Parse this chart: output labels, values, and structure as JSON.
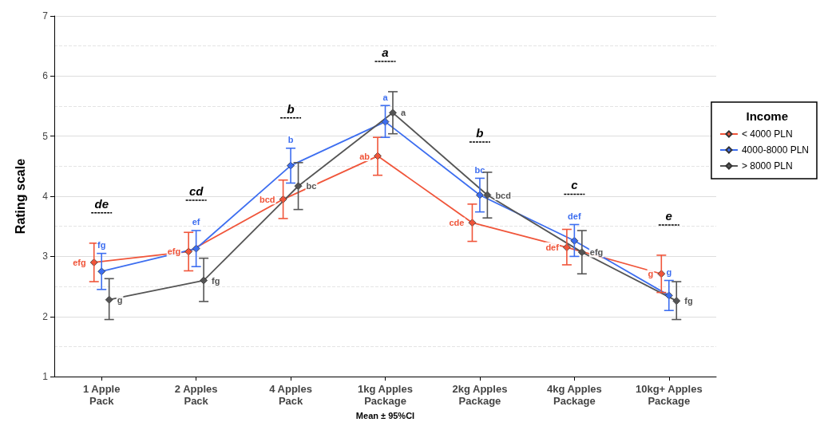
{
  "chart_data": {
    "type": "line",
    "xlabel": "Mean ± 95%CI",
    "ylabel": "Rating scale",
    "legend_title": "Income",
    "categories": [
      "1 Apple\nPack",
      "2 Apples\nPack",
      "4 Apples\nPack",
      "1kg Apples\nPackage",
      "2kg Apples\nPackage",
      "4kg Apples\nPackage",
      "10kg+ Apples\nPackage"
    ],
    "series": [
      {
        "name": "< 4000 PLN",
        "color": "#f0553a",
        "values": [
          2.9,
          3.08,
          3.95,
          4.67,
          3.56,
          3.15,
          2.71
        ],
        "errors": [
          [
            2.58,
            3.22
          ],
          [
            2.76,
            3.4
          ],
          [
            3.63,
            4.27
          ],
          [
            4.35,
            4.98
          ],
          [
            3.25,
            3.87
          ],
          [
            2.86,
            3.45
          ],
          [
            2.4,
            3.02
          ]
        ],
        "value_labels": [
          "efg",
          "efg",
          "bcd",
          "ab",
          "cde",
          "def",
          "g"
        ]
      },
      {
        "name": "4000-8000 PLN",
        "color": "#3d6ef0",
        "values": [
          2.75,
          3.13,
          4.51,
          5.24,
          4.02,
          3.26,
          2.35
        ],
        "errors": [
          [
            2.45,
            3.05
          ],
          [
            2.83,
            3.43
          ],
          [
            4.22,
            4.8
          ],
          [
            4.98,
            5.51
          ],
          [
            3.74,
            4.3
          ],
          [
            3.0,
            3.53
          ],
          [
            2.1,
            2.6
          ]
        ],
        "value_labels": [
          "fg",
          "ef",
          "b",
          "a",
          "bc",
          "def",
          "g"
        ]
      },
      {
        "name": "> 8000 PLN",
        "color": "#555555",
        "values": [
          2.28,
          2.6,
          4.17,
          5.39,
          4.02,
          3.07,
          2.26
        ],
        "errors": [
          [
            1.95,
            2.63
          ],
          [
            2.25,
            2.97
          ],
          [
            3.78,
            4.56
          ],
          [
            5.04,
            5.74
          ],
          [
            3.64,
            4.4
          ],
          [
            2.71,
            3.43
          ],
          [
            1.95,
            2.58
          ]
        ],
        "value_labels": [
          "g",
          "fg",
          "bc",
          "a",
          "bcd",
          "efg",
          "fg"
        ]
      }
    ],
    "annotations": [
      "de",
      "cd",
      "b",
      "a",
      "b",
      "c",
      "e"
    ],
    "ylim": [
      1,
      7
    ],
    "yticks": [
      1,
      2,
      3,
      4,
      5,
      6,
      7
    ],
    "grid": "y",
    "legend": "right",
    "marker": "diamond",
    "line_style": "solid"
  }
}
